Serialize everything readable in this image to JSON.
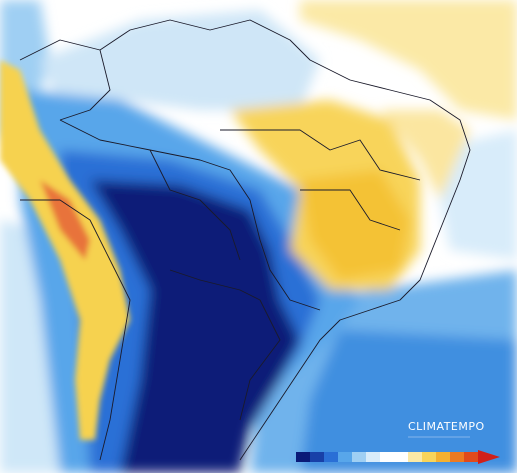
{
  "logo": {
    "text": "CLIMATEMPO"
  }
}
